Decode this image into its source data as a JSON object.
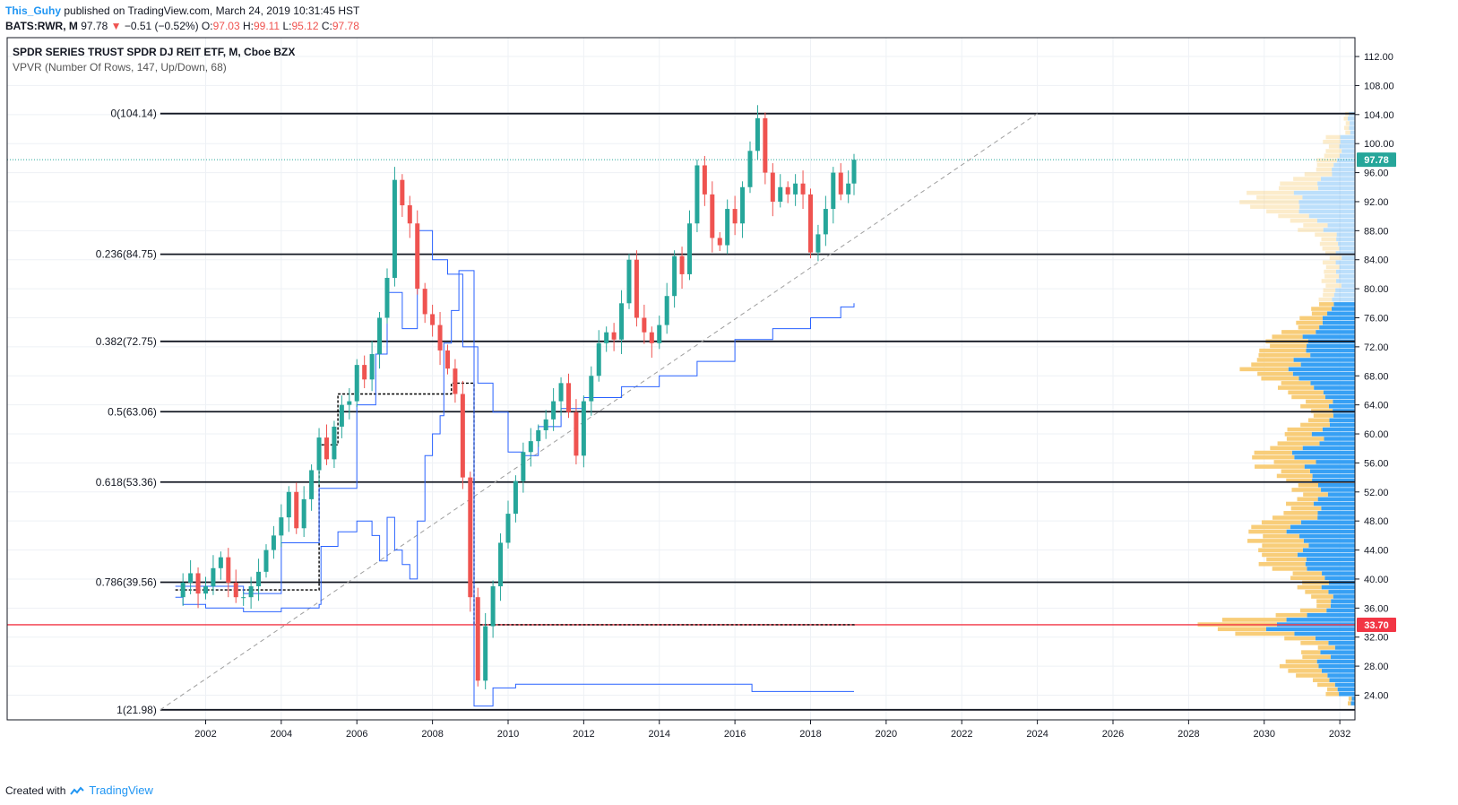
{
  "header": {
    "author": "This_Guhy",
    "published_text": "published on TradingView.com, March 24, 2019 10:31:45 HST",
    "symbol": "BATS:RWR, M",
    "last": "97.78",
    "change_arrow": "▼",
    "change": "−0.51 (−0.52%)",
    "o_label": "O:",
    "o": "97.03",
    "h_label": "H:",
    "h": "99.11",
    "l_label": "L:",
    "l": "95.12",
    "c_label": "C:",
    "c": "97.78"
  },
  "chart_data": {
    "type": "candlestick",
    "title": "SPDR SERIES TRUST SPDR DJ REIT ETF, M, Cboe BZX",
    "indicator": "VPVR (Number Of Rows, 147, Up/Down, 68)",
    "x_ticks": [
      "2002",
      "2004",
      "2006",
      "2008",
      "2010",
      "2012",
      "2014",
      "2016",
      "2018",
      "2020",
      "2022",
      "2024",
      "2026",
      "2028",
      "2030",
      "2032"
    ],
    "y_ticks": [
      "112.00",
      "108.00",
      "104.00",
      "100.00",
      "96.00",
      "92.00",
      "88.00",
      "84.00",
      "80.00",
      "76.00",
      "72.00",
      "68.00",
      "64.00",
      "60.00",
      "56.00",
      "52.00",
      "48.00",
      "44.00",
      "40.00",
      "36.00",
      "32.00",
      "28.00",
      "24.00"
    ],
    "ylim": [
      20.6,
      114.6
    ],
    "xlim": [
      1996.75,
      2032.4
    ],
    "grid": true,
    "fib_levels": [
      {
        "label": "0(104.14)",
        "value": 104.14
      },
      {
        "label": "0.236(84.75)",
        "value": 84.75
      },
      {
        "label": "0.382(72.75)",
        "value": 72.75
      },
      {
        "label": "0.5(63.06)",
        "value": 63.06
      },
      {
        "label": "0.618(53.36)",
        "value": 53.36
      },
      {
        "label": "0.786(39.56)",
        "value": 39.56
      },
      {
        "label": "1(21.98)",
        "value": 21.98
      }
    ],
    "fib_x_start": 2000.8,
    "price_badge": {
      "label": "97.78",
      "value": 97.78,
      "color": "#26a69a"
    },
    "line_badge": {
      "label": "33.70",
      "value": 33.7,
      "color": "#f23645"
    },
    "monthly_close": [
      [
        2001.2,
        37.5
      ],
      [
        2001.4,
        39.5
      ],
      [
        2001.6,
        40.8
      ],
      [
        2001.8,
        38.0
      ],
      [
        2002.0,
        39.0
      ],
      [
        2002.2,
        41.5
      ],
      [
        2002.4,
        43.0
      ],
      [
        2002.6,
        39.5
      ],
      [
        2002.8,
        37.5
      ],
      [
        2003.0,
        37.5
      ],
      [
        2003.2,
        39.0
      ],
      [
        2003.4,
        41.0
      ],
      [
        2003.6,
        44.0
      ],
      [
        2003.8,
        46.0
      ],
      [
        2004.0,
        48.5
      ],
      [
        2004.2,
        52.0
      ],
      [
        2004.4,
        47.0
      ],
      [
        2004.6,
        51.0
      ],
      [
        2004.8,
        55.0
      ],
      [
        2005.0,
        59.5
      ],
      [
        2005.2,
        56.5
      ],
      [
        2005.4,
        61.0
      ],
      [
        2005.6,
        64.0
      ],
      [
        2005.8,
        64.5
      ],
      [
        2006.0,
        69.5
      ],
      [
        2006.2,
        67.5
      ],
      [
        2006.4,
        71.0
      ],
      [
        2006.6,
        76.0
      ],
      [
        2006.8,
        81.5
      ],
      [
        2007.0,
        95.0
      ],
      [
        2007.2,
        91.5
      ],
      [
        2007.4,
        89.0
      ],
      [
        2007.6,
        80.0
      ],
      [
        2007.8,
        76.5
      ],
      [
        2008.0,
        75.0
      ],
      [
        2008.2,
        71.5
      ],
      [
        2008.4,
        69.0
      ],
      [
        2008.6,
        65.5
      ],
      [
        2008.8,
        54.0
      ],
      [
        2009.0,
        37.5
      ],
      [
        2009.2,
        26.0
      ],
      [
        2009.4,
        33.5
      ],
      [
        2009.6,
        39.0
      ],
      [
        2009.8,
        45.0
      ],
      [
        2010.0,
        49.0
      ],
      [
        2010.2,
        53.5
      ],
      [
        2010.4,
        57.5
      ],
      [
        2010.6,
        59.0
      ],
      [
        2010.8,
        60.5
      ],
      [
        2011.0,
        62.0
      ],
      [
        2011.2,
        64.5
      ],
      [
        2011.4,
        67.0
      ],
      [
        2011.6,
        63.0
      ],
      [
        2011.8,
        57.0
      ],
      [
        2012.0,
        64.5
      ],
      [
        2012.2,
        68.0
      ],
      [
        2012.4,
        72.5
      ],
      [
        2012.6,
        74.0
      ],
      [
        2012.8,
        73.0
      ],
      [
        2013.0,
        78.0
      ],
      [
        2013.2,
        84.0
      ],
      [
        2013.4,
        76.0
      ],
      [
        2013.6,
        74.0
      ],
      [
        2013.8,
        72.5
      ],
      [
        2014.0,
        75.0
      ],
      [
        2014.2,
        79.0
      ],
      [
        2014.4,
        84.5
      ],
      [
        2014.6,
        82.0
      ],
      [
        2014.8,
        89.0
      ],
      [
        2015.0,
        97.0
      ],
      [
        2015.2,
        93.0
      ],
      [
        2015.4,
        87.0
      ],
      [
        2015.6,
        86.0
      ],
      [
        2015.8,
        91.0
      ],
      [
        2016.0,
        89.0
      ],
      [
        2016.2,
        94.0
      ],
      [
        2016.4,
        99.0
      ],
      [
        2016.6,
        103.5
      ],
      [
        2016.8,
        96.0
      ],
      [
        2017.0,
        92.0
      ],
      [
        2017.2,
        94.0
      ],
      [
        2017.4,
        93.0
      ],
      [
        2017.6,
        94.5
      ],
      [
        2017.8,
        93.0
      ],
      [
        2018.0,
        85.0
      ],
      [
        2018.2,
        87.5
      ],
      [
        2018.4,
        91.0
      ],
      [
        2018.6,
        96.0
      ],
      [
        2018.8,
        93.0
      ],
      [
        2019.0,
        94.5
      ],
      [
        2019.15,
        97.78
      ]
    ],
    "series": [
      {
        "name": "",
        "color": "#2962ff",
        "values": [
          [
            2001.2,
            37.5
          ],
          [
            2001.4,
            36.5
          ],
          [
            2002.0,
            36.0
          ],
          [
            2003.0,
            35.5
          ],
          [
            2004.0,
            36.0
          ],
          [
            2005.0,
            36.5
          ],
          [
            2005.05,
            44.5
          ],
          [
            2005.5,
            46.5
          ],
          [
            2006.0,
            48.0
          ],
          [
            2006.4,
            46.0
          ],
          [
            2006.6,
            42.5
          ],
          [
            2006.8,
            48.5
          ],
          [
            2007.0,
            44.0
          ],
          [
            2007.2,
            42.0
          ],
          [
            2007.4,
            40.0
          ],
          [
            2007.6,
            48.0
          ],
          [
            2007.8,
            57.0
          ],
          [
            2008.0,
            60.0
          ],
          [
            2008.2,
            62.5
          ],
          [
            2008.3,
            72.5
          ],
          [
            2008.5,
            77.0
          ],
          [
            2008.7,
            82.5
          ],
          [
            2009.1,
            82.5
          ],
          [
            2009.1,
            22.5
          ],
          [
            2009.4,
            22.5
          ],
          [
            2009.6,
            25.0
          ],
          [
            2010.2,
            25.5
          ],
          [
            2016.4,
            25.5
          ],
          [
            2016.45,
            24.5
          ],
          [
            2019.15,
            24.5
          ]
        ]
      },
      {
        "name": "",
        "color": "#2962ff",
        "values": [
          [
            2001.2,
            39.0
          ],
          [
            2003.0,
            38.0
          ],
          [
            2004.0,
            45.0
          ],
          [
            2005.0,
            52.5
          ],
          [
            2006.0,
            64.0
          ],
          [
            2006.5,
            71.0
          ],
          [
            2006.8,
            79.5
          ],
          [
            2007.2,
            74.5
          ],
          [
            2007.6,
            88.0
          ],
          [
            2008.0,
            84.0
          ],
          [
            2008.4,
            82.0
          ],
          [
            2008.8,
            72.0
          ],
          [
            2009.2,
            67.0
          ],
          [
            2009.6,
            63.0
          ],
          [
            2010.0,
            57.5
          ],
          [
            2010.4,
            57.0
          ],
          [
            2010.8,
            61.0
          ],
          [
            2011.4,
            63.5
          ],
          [
            2012.0,
            65.0
          ],
          [
            2013.0,
            66.5
          ],
          [
            2014.0,
            68.0
          ],
          [
            2015.0,
            70.0
          ],
          [
            2016.0,
            73.0
          ],
          [
            2017.0,
            74.5
          ],
          [
            2018.0,
            76.0
          ],
          [
            2018.8,
            77.5
          ],
          [
            2019.15,
            78.0
          ]
        ]
      }
    ],
    "dashed_lines": [
      {
        "color": "#000000",
        "values": [
          [
            2001.2,
            38.5
          ],
          [
            2005.0,
            38.5
          ],
          [
            2005.0,
            58.5
          ],
          [
            2005.5,
            65.5
          ],
          [
            2008.4,
            65.5
          ],
          [
            2008.5,
            67.0
          ],
          [
            2009.1,
            67.0
          ],
          [
            2009.1,
            33.7
          ],
          [
            2019.15,
            33.8
          ]
        ]
      }
    ],
    "trendline": {
      "color": "#9e9e9e",
      "values": [
        [
          2000.8,
          21.98
        ],
        [
          2024.0,
          104.14
        ]
      ]
    },
    "vpvr": {
      "up_color": "#2196f3",
      "down_color": "#f7c86a",
      "faded_above": 78.0
    }
  },
  "footer": {
    "created_with": "Created with",
    "brand": "TradingView"
  }
}
